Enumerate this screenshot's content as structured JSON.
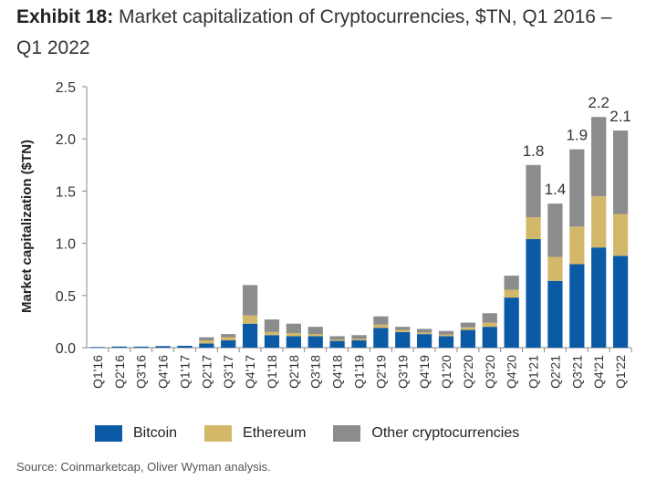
{
  "header": {
    "exhibit": "Exhibit 18:",
    "title": "Market capitalization of Cryptocurrencies, $TN, Q1 2016 – Q1 2022"
  },
  "chart_data": {
    "type": "bar",
    "stacked": true,
    "ylabel": "Market capitalization ($TN)",
    "xlabel": "",
    "ylim": [
      0,
      2.5
    ],
    "yticks": [
      "0.0",
      "0.5",
      "1.0",
      "1.5",
      "2.0",
      "2.5"
    ],
    "categories": [
      "Q1'16",
      "Q2'16",
      "Q3'16",
      "Q4'16",
      "Q1'17",
      "Q2'17",
      "Q3'17",
      "Q4'17",
      "Q1'18",
      "Q2'18",
      "Q3'18",
      "Q4'18",
      "Q1'19",
      "Q2'19",
      "Q3'19",
      "Q4'19",
      "Q1'20",
      "Q2'20",
      "Q3'20",
      "Q4'20",
      "Q1'21",
      "Q2'21",
      "Q3'21",
      "Q4'21",
      "Q1'22"
    ],
    "series": [
      {
        "name": "Bitcoin",
        "color": "#0b5aa6",
        "values": [
          0.006,
          0.011,
          0.01,
          0.015,
          0.018,
          0.04,
          0.07,
          0.23,
          0.12,
          0.11,
          0.11,
          0.065,
          0.07,
          0.19,
          0.15,
          0.13,
          0.11,
          0.17,
          0.2,
          0.48,
          1.04,
          0.64,
          0.8,
          0.96,
          0.88
        ]
      },
      {
        "name": "Ethereum",
        "color": "#d4b86a",
        "values": [
          0.0,
          0.0,
          0.0,
          0.0,
          0.0,
          0.03,
          0.03,
          0.08,
          0.03,
          0.03,
          0.02,
          0.012,
          0.014,
          0.03,
          0.02,
          0.015,
          0.015,
          0.025,
          0.04,
          0.075,
          0.21,
          0.23,
          0.36,
          0.49,
          0.4
        ]
      },
      {
        "name": "Other cryptocurrencies",
        "color": "#8c8c8c",
        "values": [
          0.0,
          0.0,
          0.0,
          0.0,
          0.0,
          0.03,
          0.03,
          0.29,
          0.12,
          0.09,
          0.07,
          0.033,
          0.036,
          0.08,
          0.03,
          0.035,
          0.035,
          0.045,
          0.09,
          0.135,
          0.5,
          0.51,
          0.74,
          0.76,
          0.8
        ]
      }
    ],
    "annotations": [
      {
        "category": "Q1'21",
        "label": "1.8",
        "value": 1.75
      },
      {
        "category": "Q2'21",
        "label": "1.4",
        "value": 1.38
      },
      {
        "category": "Q3'21",
        "label": "1.9",
        "value": 1.9
      },
      {
        "category": "Q4'21",
        "label": "2.2",
        "value": 2.21
      },
      {
        "category": "Q1'22",
        "label": "2.1",
        "value": 2.08
      }
    ]
  },
  "source": "Source: Coinmarketcap, Oliver Wyman analysis."
}
